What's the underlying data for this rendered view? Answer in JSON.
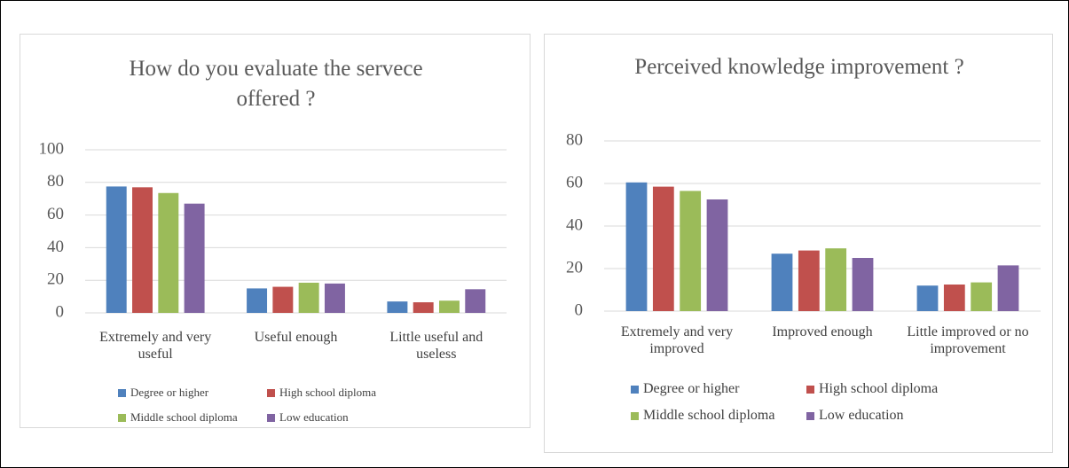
{
  "chart_data": [
    {
      "type": "bar",
      "title": "How do you evaluate the servece offered ?",
      "categories": [
        "Extremely and very useful",
        "Useful enough",
        "Little useful and useless"
      ],
      "series": [
        {
          "name": "Degree or higher",
          "color": "#4f81bd",
          "values": [
            77.5,
            15,
            7
          ]
        },
        {
          "name": "High school diploma",
          "color": "#c0504d",
          "values": [
            77,
            16,
            6.5
          ]
        },
        {
          "name": "Middle school diploma",
          "color": "#9bbb59",
          "values": [
            73.5,
            18.5,
            7.5
          ]
        },
        {
          "name": "Low education",
          "color": "#8064a2",
          "values": [
            67,
            18,
            14.5
          ]
        }
      ],
      "ylim": [
        0,
        100
      ],
      "yticks": [
        0,
        20,
        40,
        60,
        80,
        100
      ],
      "grid": true,
      "legend": "bottom"
    },
    {
      "type": "bar",
      "title": "Perceived knowledge improvement ?",
      "categories": [
        "Extremely and very improved",
        "Improved enough",
        "Little improved or no improvement"
      ],
      "series": [
        {
          "name": "Degree or higher",
          "color": "#4f81bd",
          "values": [
            60.5,
            27,
            12
          ]
        },
        {
          "name": "High school diploma",
          "color": "#c0504d",
          "values": [
            58.5,
            28.5,
            12.5
          ]
        },
        {
          "name": "Middle school diploma",
          "color": "#9bbb59",
          "values": [
            56.5,
            29.5,
            13.5
          ]
        },
        {
          "name": "Low education",
          "color": "#8064a2",
          "values": [
            52.5,
            25,
            21.5
          ]
        }
      ],
      "ylim": [
        0,
        80
      ],
      "yticks": [
        0,
        20,
        40,
        60,
        80
      ],
      "grid": true,
      "legend": "bottom"
    }
  ]
}
